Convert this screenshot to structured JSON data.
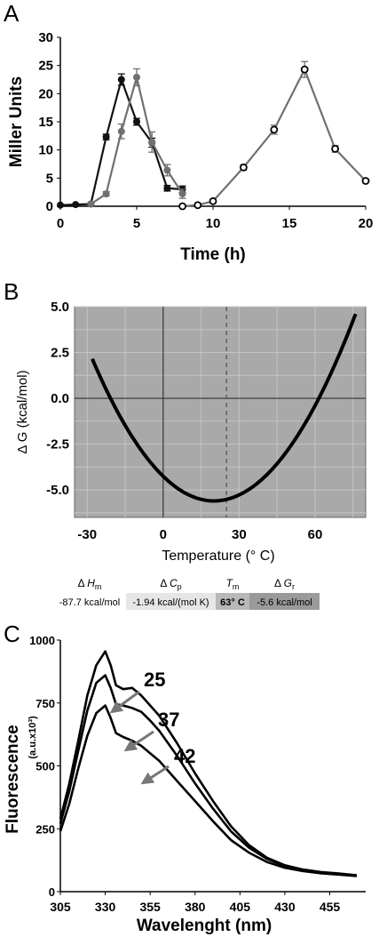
{
  "chart_data": [
    {
      "panel": "A",
      "type": "line",
      "xlabel": "Time (h)",
      "ylabel": "Miller Units",
      "xlim": [
        0,
        20
      ],
      "ylim": [
        0,
        30
      ],
      "xticks": [
        0,
        5,
        10,
        15,
        20
      ],
      "yticks": [
        0,
        5,
        10,
        15,
        20,
        25,
        30
      ],
      "grid": false,
      "series": [
        {
          "color": "#111111",
          "marker": "filled-circle",
          "x": [
            0,
            1,
            2,
            3,
            4,
            5,
            6,
            7,
            8
          ],
          "y": [
            0.2,
            0.3,
            0.4,
            12.3,
            22.5,
            15.0,
            11.3,
            3.2,
            3.0
          ],
          "err": [
            0,
            0,
            0,
            0.5,
            1.0,
            0.6,
            0.8,
            0.5,
            0.6
          ]
        },
        {
          "color": "#707070",
          "marker": "filled-circle",
          "x": [
            2,
            3,
            4,
            5,
            6,
            7,
            8
          ],
          "y": [
            0.4,
            2.2,
            13.3,
            22.9,
            11.4,
            6.4,
            2.2
          ],
          "err": [
            0,
            0.4,
            1.3,
            1.5,
            1.8,
            1.0,
            0.8
          ]
        },
        {
          "color": "#707070",
          "marker": "open-circle",
          "x": [
            8,
            9,
            10,
            12,
            14,
            16,
            18,
            20
          ],
          "y": [
            0.0,
            0.2,
            0.9,
            6.9,
            13.6,
            24.3,
            10.2,
            4.5
          ],
          "err": [
            0,
            0,
            0.3,
            0.5,
            0.8,
            1.4,
            0.6,
            0.3
          ]
        }
      ]
    },
    {
      "panel": "B",
      "type": "line",
      "xlabel": "Temperature (° C)",
      "ylabel": "Δ G (kcal/mol)",
      "xlim": [
        -35,
        80
      ],
      "ylim": [
        -6.5,
        5.0
      ],
      "xticks": [
        -30,
        0,
        30,
        60
      ],
      "yticks": [
        5.0,
        2.5,
        0.0,
        -2.5,
        -5.0
      ],
      "ytick_labels": [
        "5.0",
        "2.5",
        "0.0",
        "-2.5",
        "-5.0"
      ],
      "grid": true,
      "background": "#a9a9a9",
      "vline_dashed_x": 25,
      "curve": {
        "formula": "quadratic",
        "min_x": 20,
        "min_y": -5.6,
        "points": [
          [
            -28,
            2.15
          ],
          [
            -15,
            -1.6
          ],
          [
            0,
            -4.4
          ],
          [
            20,
            -5.6
          ],
          [
            40,
            -4.3
          ],
          [
            60,
            -0.5
          ],
          [
            76,
            4.6
          ]
        ]
      },
      "table": {
        "headers": [
          {
            "prefix": "Δ ",
            "sym": "H",
            "sub": "m"
          },
          {
            "prefix": "Δ ",
            "sym": "C",
            "sub": "p"
          },
          {
            "prefix": "",
            "sym": "T",
            "sub": "m"
          },
          {
            "prefix": "Δ ",
            "sym": "G",
            "sub": "r"
          }
        ],
        "values": [
          "-87.7 kcal/mol",
          "-1.94 kcal/(mol K)",
          "63° C",
          "-5.6 kcal/mol"
        ],
        "cell_colors": [
          "#ffffff",
          "#e6e6e6",
          "#b8b8b8",
          "#9a9a9a"
        ]
      }
    },
    {
      "panel": "C",
      "type": "line",
      "xlabel": "Wavelenght (nm)",
      "ylabel": "Fluorescence",
      "ylabel_unit": "(a.u.x10³)",
      "xlim": [
        305,
        475
      ],
      "ylim": [
        0,
        1000
      ],
      "xticks": [
        305,
        330,
        355,
        380,
        405,
        430,
        455
      ],
      "yticks": [
        0,
        250,
        500,
        750,
        1000
      ],
      "grid": false,
      "annotations": [
        "25",
        "37",
        "42"
      ],
      "series": [
        {
          "name": "25",
          "x": [
            305,
            310,
            315,
            320,
            325,
            330,
            333,
            336,
            340,
            345,
            350,
            355,
            360,
            370,
            380,
            390,
            400,
            410,
            420,
            430,
            440,
            450,
            460,
            470
          ],
          "y": [
            290,
            430,
            600,
            780,
            900,
            955,
            900,
            820,
            805,
            810,
            780,
            740,
            700,
            590,
            470,
            360,
            260,
            185,
            135,
            105,
            88,
            78,
            72,
            65
          ]
        },
        {
          "name": "37",
          "x": [
            305,
            310,
            315,
            320,
            325,
            330,
            333,
            336,
            340,
            345,
            350,
            355,
            360,
            370,
            380,
            390,
            400,
            410,
            420,
            430,
            440,
            450,
            460,
            470
          ],
          "y": [
            270,
            400,
            560,
            720,
            830,
            860,
            810,
            745,
            740,
            730,
            715,
            680,
            640,
            540,
            430,
            330,
            240,
            175,
            130,
            102,
            86,
            76,
            70,
            64
          ]
        },
        {
          "name": "42",
          "x": [
            305,
            310,
            315,
            320,
            325,
            330,
            333,
            336,
            340,
            345,
            350,
            355,
            360,
            370,
            380,
            390,
            400,
            410,
            420,
            430,
            440,
            450,
            460,
            470
          ],
          "y": [
            240,
            350,
            490,
            620,
            710,
            740,
            690,
            630,
            615,
            600,
            580,
            550,
            520,
            440,
            360,
            280,
            205,
            155,
            118,
            95,
            82,
            73,
            68,
            62
          ]
        }
      ]
    }
  ]
}
